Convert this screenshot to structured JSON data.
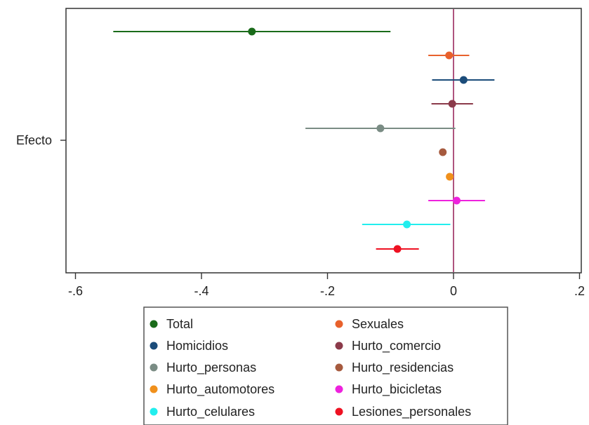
{
  "chart_data": {
    "type": "scatter",
    "subtype": "coefficient-plot",
    "ylabel_category": "Efecto",
    "xlim": [
      -0.615,
      0.2
    ],
    "xticks": [
      {
        "value": -0.6,
        "label": "-.6"
      },
      {
        "value": -0.4,
        "label": "-.4"
      },
      {
        "value": -0.2,
        "label": "-.2"
      },
      {
        "value": 0.0,
        "label": "0"
      },
      {
        "value": 0.2,
        "label": ".2"
      }
    ],
    "reference_line": {
      "x": 0,
      "color": "#9b2a5e"
    },
    "grid": false,
    "legend_position": "bottom",
    "series": [
      {
        "name": "Total",
        "color": "#1a6b1a",
        "estimate": -0.32,
        "ci": [
          -0.54,
          -0.1
        ]
      },
      {
        "name": "Sexuales",
        "color": "#e8612c",
        "estimate": -0.007,
        "ci": [
          -0.04,
          0.025
        ]
      },
      {
        "name": "Homicidios",
        "color": "#1b4c7a",
        "estimate": 0.016,
        "ci": [
          -0.034,
          0.065
        ]
      },
      {
        "name": "Hurto_comercio",
        "color": "#8b3a4a",
        "estimate": -0.002,
        "ci": [
          -0.035,
          0.031
        ]
      },
      {
        "name": "Hurto_personas",
        "color": "#7a8c84",
        "estimate": -0.116,
        "ci": [
          -0.235,
          0.003
        ]
      },
      {
        "name": "Hurto_residencias",
        "color": "#a65a3e",
        "estimate": -0.017,
        "ci": null
      },
      {
        "name": "Hurto_automotores",
        "color": "#f0901c",
        "estimate": -0.006,
        "ci": null
      },
      {
        "name": "Hurto_bicicletas",
        "color": "#ee22dd",
        "estimate": 0.005,
        "ci": [
          -0.04,
          0.05
        ]
      },
      {
        "name": "Hurto_celulares",
        "color": "#22eeee",
        "estimate": -0.074,
        "ci": [
          -0.145,
          -0.005
        ]
      },
      {
        "name": "Lesiones_personales",
        "color": "#ee1122",
        "estimate": -0.089,
        "ci": [
          -0.123,
          -0.055
        ]
      }
    ]
  }
}
